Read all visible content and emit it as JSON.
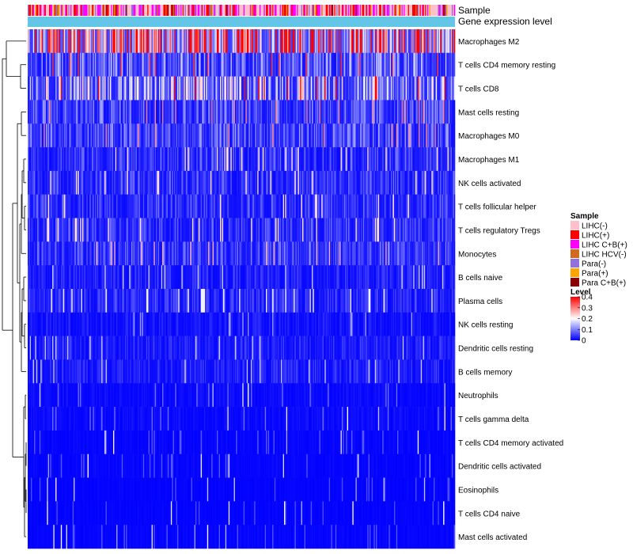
{
  "chart_data": {
    "type": "heatmap",
    "annotation_tracks": [
      "Sample",
      "Gene expression level"
    ],
    "rows": [
      "Macrophages M2",
      "T cells CD4 memory resting",
      "T cells CD8",
      "Mast cells resting",
      "Macrophages M0",
      "Macrophages M1",
      "NK cells activated",
      "T cells follicular helper",
      "T cells regulatory  Tregs",
      "Monocytes",
      "B cells naive",
      "Plasma cells",
      "NK cells resting",
      "Dendritic cells resting",
      "B cells memory",
      "Neutrophils",
      "T cells gamma delta",
      "T cells CD4 memory activated",
      "Dendritic cells activated",
      "Eosinophils",
      "T cells CD4 naive",
      "Mast cells activated"
    ],
    "row_mean_levels": [
      0.28,
      0.09,
      0.14,
      0.07,
      0.07,
      0.05,
      0.05,
      0.05,
      0.05,
      0.06,
      0.03,
      0.04,
      0.02,
      0.03,
      0.03,
      0.01,
      0.01,
      0.005,
      0.005,
      0.003,
      0.003,
      0.004
    ],
    "n_samples": 400,
    "sample_legend": {
      "title": "Sample",
      "entries": [
        {
          "label": "LIHC(-)",
          "color": "#FFC0CB"
        },
        {
          "label": "LIHC(+)",
          "color": "#FF0000"
        },
        {
          "label": "LIHC C+B(+)",
          "color": "#FF00FF"
        },
        {
          "label": "LIHC HCV(-)",
          "color": "#D2691E"
        },
        {
          "label": "Para(-)",
          "color": "#9370DB"
        },
        {
          "label": "Para(+)",
          "color": "#FFA500"
        },
        {
          "label": "Para C+B(+)",
          "color": "#8B0000"
        }
      ]
    },
    "level_legend": {
      "title": "Level",
      "ticks": [
        "0.4",
        "0.3",
        "0.2",
        "0.1",
        "0"
      ],
      "range": [
        0,
        0.4
      ],
      "colors": [
        "#0000FF",
        "#FFFFFF",
        "#FF0000"
      ]
    },
    "gene_expression_color": "#63C6E6"
  }
}
